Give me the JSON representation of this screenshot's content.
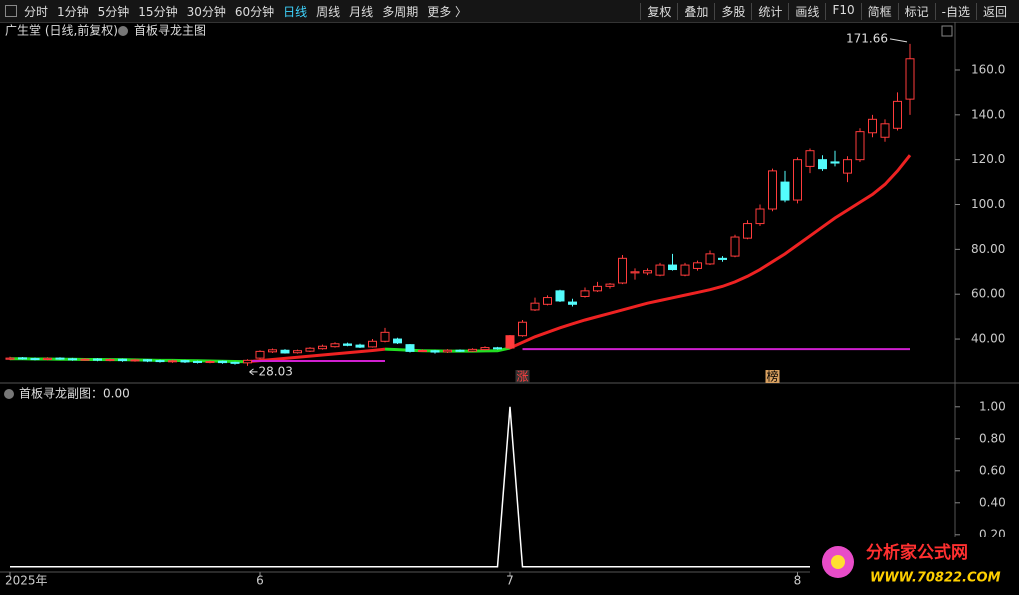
{
  "toolbar": {
    "left": [
      "分时",
      "1分钟",
      "5分钟",
      "15分钟",
      "30分钟",
      "60分钟",
      "日线",
      "周线",
      "月线",
      "多周期",
      "更多 〉"
    ],
    "active": "日线",
    "right": [
      "复权",
      "叠加",
      "多股",
      "统计",
      "画线",
      "F10",
      "简框",
      "标记",
      "-自选",
      "返回"
    ]
  },
  "header": {
    "stock": "广生堂 (日线,前复权)",
    "indicator": "首板寻龙主图"
  },
  "logo": {
    "title": "分析家公式网",
    "url": "WWW.70822.COM"
  },
  "chart_data": [
    {
      "type": "candlestick",
      "up_color": "#ff3c3c",
      "down_color": "#54fcfc",
      "categories": [
        "2025年",
        null,
        null,
        null,
        null,
        null,
        null,
        null,
        null,
        null,
        null,
        null,
        null,
        null,
        null,
        null,
        null,
        null,
        null,
        null,
        "6",
        null,
        null,
        null,
        null,
        null,
        null,
        null,
        null,
        null,
        null,
        null,
        null,
        null,
        null,
        null,
        null,
        null,
        null,
        null,
        "7",
        null,
        null,
        null,
        null,
        null,
        null,
        null,
        null,
        null,
        null,
        null,
        null,
        null,
        null,
        null,
        null,
        null,
        null,
        null,
        null,
        null,
        null,
        "8",
        null,
        null,
        null,
        null,
        null,
        null,
        null,
        null,
        null
      ],
      "open": [
        31.0,
        31.6,
        31.3,
        30.9,
        31.5,
        31.2,
        30.7,
        31.1,
        30.5,
        31.0,
        30.3,
        30.8,
        30.4,
        29.9,
        30.4,
        30.0,
        29.7,
        30.1,
        29.6,
        29.4,
        31.5,
        34.3,
        35.0,
        33.9,
        34.6,
        35.7,
        36.6,
        37.8,
        37.3,
        36.5,
        39.0,
        40.0,
        37.5,
        34.6,
        34.8,
        34.3,
        35.0,
        34.6,
        35.3,
        36.1,
        36.0,
        41.5,
        53.0,
        55.5,
        61.5,
        56.5,
        59.0,
        61.5,
        63.5,
        65.0,
        69.5,
        69.5,
        68.5,
        73.0,
        68.5,
        71.5,
        73.5,
        76.0,
        77.0,
        85.0,
        91.5,
        98.0,
        110.0,
        102.0,
        117.0,
        120.0,
        119.0,
        114.0,
        120.0,
        132.0,
        130.0,
        134.0,
        147.0
      ],
      "high": [
        32.1,
        32.0,
        31.8,
        31.9,
        31.9,
        31.6,
        31.5,
        31.5,
        31.4,
        31.3,
        31.2,
        31.1,
        30.8,
        30.8,
        30.7,
        30.4,
        30.5,
        30.4,
        29.9,
        31.0,
        35.0,
        35.8,
        35.5,
        35.3,
        36.4,
        37.5,
        38.6,
        38.4,
        37.9,
        40.0,
        45.0,
        40.6,
        37.8,
        35.4,
        35.2,
        35.5,
        35.4,
        35.9,
        36.8,
        36.5,
        41.8,
        48.5,
        58.5,
        59.5,
        62.0,
        58.0,
        63.0,
        65.5,
        65.0,
        77.5,
        71.5,
        71.5,
        74.0,
        78.0,
        74.0,
        75.0,
        79.5,
        77.0,
        86.5,
        93.0,
        100.0,
        116.0,
        115.0,
        121.0,
        125.0,
        122.0,
        124.0,
        121.5,
        134.0,
        140.0,
        138.0,
        150.0,
        171.66
      ],
      "low": [
        30.6,
        30.8,
        30.5,
        30.5,
        30.7,
        30.3,
        30.3,
        30.1,
        30.1,
        29.9,
        29.9,
        29.7,
        29.5,
        29.4,
        29.3,
        29.1,
        29.2,
        29.0,
        28.6,
        28.03,
        31.0,
        33.8,
        33.5,
        33.5,
        34.2,
        35.3,
        36.2,
        36.8,
        36.0,
        36.2,
        38.5,
        37.8,
        34.0,
        34.2,
        33.5,
        33.8,
        34.2,
        34.3,
        35.0,
        35.3,
        35.5,
        41.0,
        52.5,
        55.0,
        56.5,
        54.5,
        58.5,
        61.0,
        62.5,
        64.5,
        66.5,
        68.5,
        68.0,
        70.5,
        68.0,
        70.5,
        73.0,
        74.5,
        76.5,
        84.5,
        90.5,
        97.0,
        101.0,
        100.5,
        114.0,
        115.0,
        117.0,
        110.0,
        119.0,
        130.0,
        128.0,
        133.0,
        140.0
      ],
      "close": [
        31.5,
        31.2,
        31.0,
        31.4,
        31.1,
        30.8,
        31.0,
        30.6,
        30.9,
        30.4,
        30.7,
        30.2,
        30.0,
        30.3,
        29.8,
        29.6,
        30.0,
        29.5,
        29.3,
        30.5,
        34.5,
        35.2,
        33.8,
        34.8,
        35.9,
        36.8,
        37.9,
        37.2,
        36.4,
        39.0,
        43.0,
        38.3,
        34.5,
        34.9,
        34.2,
        35.0,
        34.6,
        35.4,
        36.2,
        35.8,
        41.5,
        47.5,
        56.0,
        58.5,
        57.0,
        55.5,
        61.5,
        63.5,
        64.5,
        76.0,
        70.0,
        70.5,
        73.0,
        71.0,
        73.0,
        74.0,
        78.0,
        75.5,
        85.5,
        91.5,
        98.0,
        115.0,
        102.0,
        120.0,
        124.0,
        116.0,
        118.5,
        120.0,
        132.5,
        138.0,
        136.0,
        146.0,
        165.0
      ],
      "series": [
        {
          "color": "#22dd22",
          "width": 3,
          "values": [
            31.2,
            31.2,
            31.1,
            31.1,
            31.0,
            31.0,
            30.9,
            30.9,
            30.8,
            30.8,
            30.7,
            30.6,
            30.5,
            30.5,
            30.4,
            30.3,
            30.2,
            30.1,
            30.0,
            29.9,
            null,
            null,
            null,
            null,
            null,
            null,
            null,
            null,
            null,
            null,
            35.5,
            35.3,
            35.0,
            34.8,
            34.7,
            34.6,
            34.6,
            34.6,
            34.7,
            34.8,
            36.0,
            null,
            null,
            null,
            null,
            null,
            null,
            null,
            null,
            null,
            null,
            null,
            null,
            null,
            null,
            null,
            null,
            null,
            null,
            null,
            null,
            null,
            null,
            null,
            null,
            null,
            null,
            null,
            null,
            null,
            null,
            null,
            null
          ]
        },
        {
          "color": "#ee2222",
          "width": 3,
          "values": [
            null,
            null,
            null,
            null,
            null,
            null,
            null,
            null,
            null,
            null,
            null,
            null,
            null,
            null,
            null,
            null,
            null,
            null,
            null,
            29.9,
            30.4,
            30.9,
            31.4,
            31.9,
            32.4,
            32.9,
            33.4,
            33.9,
            34.4,
            34.9,
            35.5,
            null,
            null,
            null,
            null,
            null,
            null,
            null,
            null,
            null,
            36.0,
            38.5,
            41.0,
            43.0,
            45.0,
            46.8,
            48.5,
            50.0,
            51.5,
            53.0,
            54.5,
            56.0,
            57.2,
            58.4,
            59.6,
            60.8,
            62.0,
            63.5,
            65.5,
            68.0,
            71.0,
            74.5,
            78.0,
            82.0,
            86.0,
            90.0,
            94.0,
            97.5,
            101.0,
            104.5,
            109.0,
            115.0,
            122.0
          ]
        },
        {
          "color": "#d020d0",
          "width": 2,
          "values": [
            null,
            null,
            null,
            null,
            null,
            null,
            null,
            null,
            null,
            null,
            null,
            null,
            null,
            null,
            null,
            null,
            null,
            null,
            null,
            30.2,
            30.2,
            30.2,
            30.2,
            30.2,
            30.2,
            30.2,
            30.2,
            30.2,
            30.2,
            30.2,
            30.2,
            null,
            null,
            null,
            null,
            null,
            null,
            null,
            null,
            null,
            null,
            35.5,
            35.5,
            35.5,
            35.5,
            35.5,
            35.5,
            35.5,
            35.5,
            35.5,
            35.5,
            35.5,
            35.5,
            35.5,
            35.5,
            35.5,
            35.5,
            35.5,
            35.5,
            35.5,
            35.5,
            35.5,
            35.5,
            35.5,
            35.5,
            35.5,
            35.5,
            35.5,
            35.5,
            35.5,
            35.5,
            35.5,
            35.5
          ]
        }
      ],
      "markers": [
        {
          "index": 41,
          "label": "涨"
        },
        {
          "index": 61,
          "label": "榜"
        }
      ],
      "ylim": [
        20.4,
        181.4
      ],
      "yticks": [
        {
          "value": 40,
          "label": "40.00"
        },
        {
          "value": 60,
          "label": "60.00"
        },
        {
          "value": 80,
          "label": "80.00"
        },
        {
          "value": 100,
          "label": "100.0"
        },
        {
          "value": 120,
          "label": "120.0"
        },
        {
          "value": 140,
          "label": "140.0"
        },
        {
          "value": 160,
          "label": "160.0"
        }
      ]
    },
    {
      "type": "line",
      "title": "首板寻龙副图：0.00",
      "color": "#ffffff",
      "values": [
        0,
        0,
        0,
        0,
        0,
        0,
        0,
        0,
        0,
        0,
        0,
        0,
        0,
        0,
        0,
        0,
        0,
        0,
        0,
        0,
        0,
        0,
        0,
        0,
        0,
        0,
        0,
        0,
        0,
        0,
        0,
        0,
        0,
        0,
        0,
        0,
        0,
        0,
        0,
        0,
        1,
        0,
        0,
        0,
        0,
        0,
        0,
        0,
        0,
        0,
        0,
        0,
        0,
        0,
        0,
        0,
        0,
        0,
        0,
        0,
        0,
        0,
        0,
        0,
        0,
        0,
        0,
        0,
        0,
        0,
        0,
        0,
        0
      ],
      "ylim": [
        -0.02,
        1.13
      ],
      "yticks": [
        {
          "value": 0.2,
          "label": "0.20"
        },
        {
          "value": 0.4,
          "label": "0.40"
        },
        {
          "value": 0.6,
          "label": "0.60"
        },
        {
          "value": 0.8,
          "label": "0.80"
        },
        {
          "value": 1,
          "label": "1.00"
        }
      ]
    }
  ]
}
